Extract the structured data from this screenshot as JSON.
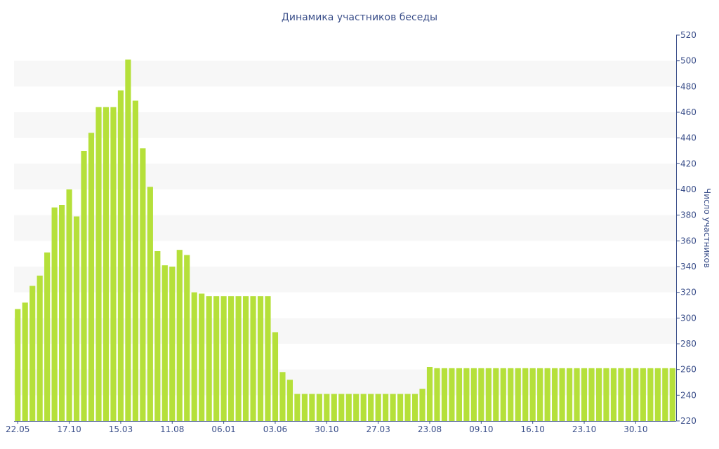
{
  "chart_data": {
    "type": "bar",
    "title": "Динамика участников беседы",
    "xlabel": "",
    "ylabel": "Число участников",
    "y_axis_side": "right",
    "ylim": [
      220,
      520
    ],
    "y_ticks": [
      220,
      240,
      260,
      280,
      300,
      320,
      340,
      360,
      380,
      400,
      420,
      440,
      460,
      480,
      500,
      520
    ],
    "x_tick_labels": [
      {
        "label": "22.05",
        "index": 0
      },
      {
        "label": "17.10",
        "index": 7
      },
      {
        "label": "15.03",
        "index": 14
      },
      {
        "label": "11.08",
        "index": 21
      },
      {
        "label": "06.01",
        "index": 28
      },
      {
        "label": "03.06",
        "index": 35
      },
      {
        "label": "30.10",
        "index": 42
      },
      {
        "label": "27.03",
        "index": 49
      },
      {
        "label": "23.08",
        "index": 56
      },
      {
        "label": "09.10",
        "index": 63
      },
      {
        "label": "16.10",
        "index": 70
      },
      {
        "label": "23.10",
        "index": 77
      },
      {
        "label": "30.10",
        "index": 84
      }
    ],
    "grid": "alternating horizontal bands",
    "bar_color": "#b5e03a",
    "band_color": "#f7f7f7",
    "text_color": "#3b4f8a",
    "values": [
      307,
      312,
      325,
      333,
      351,
      386,
      388,
      400,
      379,
      430,
      444,
      464,
      464,
      464,
      477,
      501,
      469,
      432,
      402,
      352,
      341,
      340,
      353,
      349,
      320,
      319,
      317,
      317,
      317,
      317,
      317,
      317,
      317,
      317,
      317,
      289,
      258,
      252,
      241,
      241,
      241,
      241,
      241,
      241,
      241,
      241,
      241,
      241,
      241,
      241,
      241,
      241,
      241,
      241,
      241,
      245,
      262,
      261,
      261,
      261,
      261,
      261,
      261,
      261,
      261,
      261,
      261,
      261,
      261,
      261,
      261,
      261,
      261,
      261,
      261,
      261,
      261,
      261,
      261,
      261,
      261,
      261,
      261,
      261,
      261,
      261,
      261,
      261,
      261,
      261
    ]
  }
}
